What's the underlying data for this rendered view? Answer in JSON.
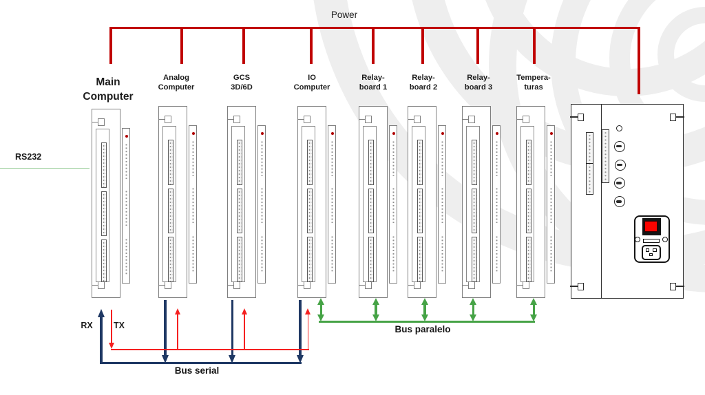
{
  "diagram": {
    "power_label": "Power",
    "rs232_label": "RS232",
    "rx_label": "RX",
    "tx_label": "TX",
    "bus_serial_label": "Bus serial",
    "bus_paralelo_label": "Bus paralelo",
    "boards": [
      {
        "id": "main-computer",
        "label_line1": "Main",
        "label_line2": "Computer"
      },
      {
        "id": "analog-computer",
        "label_line1": "Analog",
        "label_line2": "Computer"
      },
      {
        "id": "gcs-3d-6d",
        "label_line1": "GCS",
        "label_line2": "3D/6D"
      },
      {
        "id": "io-computer",
        "label_line1": "IO",
        "label_line2": "Computer"
      },
      {
        "id": "relay-board-1",
        "label_line1": "Relay-",
        "label_line2": "board 1"
      },
      {
        "id": "relay-board-2",
        "label_line1": "Relay-",
        "label_line2": "board 2"
      },
      {
        "id": "relay-board-3",
        "label_line1": "Relay-",
        "label_line2": "board 3"
      },
      {
        "id": "temperaturas",
        "label_line1": "Tempera-",
        "label_line2": "turas"
      }
    ],
    "power_supply": {
      "id": "power-supply"
    },
    "colors": {
      "power_bus": "#c00000",
      "serial_rx_bus": "#1f3864",
      "serial_tx_bus": "#f52020",
      "parallel_bus": "#46a346",
      "rs232_line": "#9fd09f",
      "board_led": "#b00000",
      "power_switch": "#fb0400"
    }
  }
}
